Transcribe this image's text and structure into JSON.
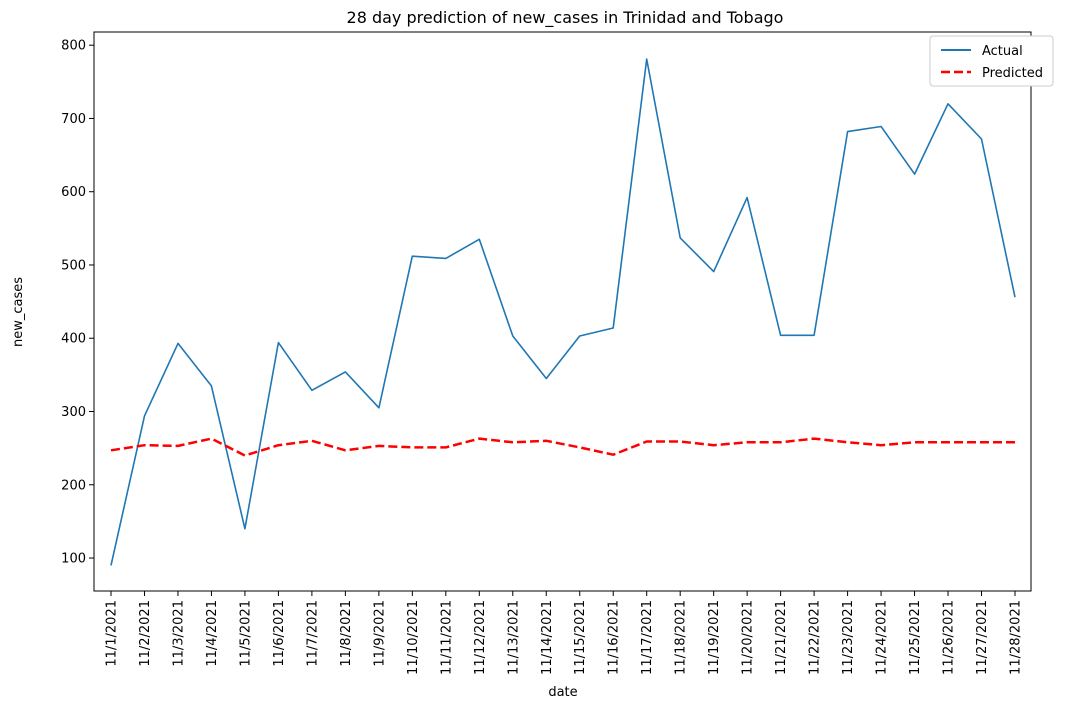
{
  "chart_data": {
    "type": "line",
    "title": "28 day prediction of new_cases in Trinidad and Tobago",
    "xlabel": "date",
    "ylabel": "new_cases",
    "categories": [
      "11/1/2021",
      "11/2/2021",
      "11/3/2021",
      "11/4/2021",
      "11/5/2021",
      "11/6/2021",
      "11/7/2021",
      "11/8/2021",
      "11/9/2021",
      "11/10/2021",
      "11/11/2021",
      "11/12/2021",
      "11/13/2021",
      "11/14/2021",
      "11/15/2021",
      "11/16/2021",
      "11/17/2021",
      "11/18/2021",
      "11/19/2021",
      "11/20/2021",
      "11/21/2021",
      "11/22/2021",
      "11/23/2021",
      "11/24/2021",
      "11/25/2021",
      "11/26/2021",
      "11/27/2021",
      "11/28/2021"
    ],
    "ylim": [
      55,
      818
    ],
    "yticks": [
      100,
      200,
      300,
      400,
      500,
      600,
      700,
      800
    ],
    "legend_position": "top-right",
    "series": [
      {
        "name": "Actual",
        "color": "#1f77b4",
        "style": "solid",
        "values": [
          90,
          294,
          393,
          335,
          140,
          394,
          329,
          354,
          305,
          512,
          509,
          535,
          403,
          345,
          403,
          414,
          781,
          537,
          491,
          592,
          404,
          404,
          682,
          689,
          624,
          720,
          672,
          456
        ]
      },
      {
        "name": "Predicted",
        "color": "#ff0000",
        "style": "dashed",
        "values": [
          247,
          254,
          253,
          263,
          240,
          254,
          260,
          247,
          253,
          251,
          251,
          263,
          258,
          260,
          251,
          241,
          259,
          259,
          254,
          258,
          258,
          263,
          258,
          254,
          258,
          258,
          258,
          258
        ]
      }
    ]
  }
}
